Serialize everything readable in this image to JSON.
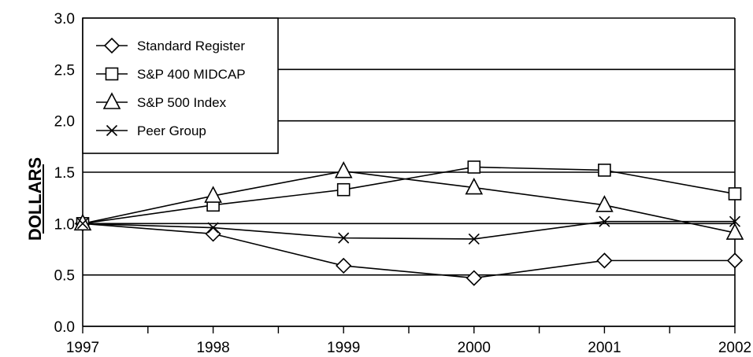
{
  "chart_data": {
    "type": "line",
    "title": "",
    "xlabel": "",
    "ylabel": "DOLLARS",
    "categories": [
      "1997",
      "1998",
      "1999",
      "2000",
      "2001",
      "2002"
    ],
    "ylim": [
      0.0,
      3.0
    ],
    "yticks": [
      "0.0",
      "0.5",
      "1.0",
      "1.5",
      "2.0",
      "2.5",
      "3.0"
    ],
    "grid": "horizontal",
    "legend_position": "top-left",
    "series": [
      {
        "name": "Standard Register",
        "marker": "diamond",
        "values": [
          1.0,
          0.9,
          0.59,
          0.47,
          0.64,
          0.64
        ]
      },
      {
        "name": "S&P 400 MIDCAP",
        "marker": "square",
        "values": [
          1.0,
          1.18,
          1.33,
          1.55,
          1.52,
          1.29
        ]
      },
      {
        "name": "S&P 500 Index",
        "marker": "triangle",
        "values": [
          1.0,
          1.27,
          1.51,
          1.35,
          1.18,
          0.91
        ]
      },
      {
        "name": "Peer Group",
        "marker": "cross",
        "values": [
          1.0,
          0.96,
          0.86,
          0.85,
          1.02,
          1.02
        ]
      }
    ]
  }
}
